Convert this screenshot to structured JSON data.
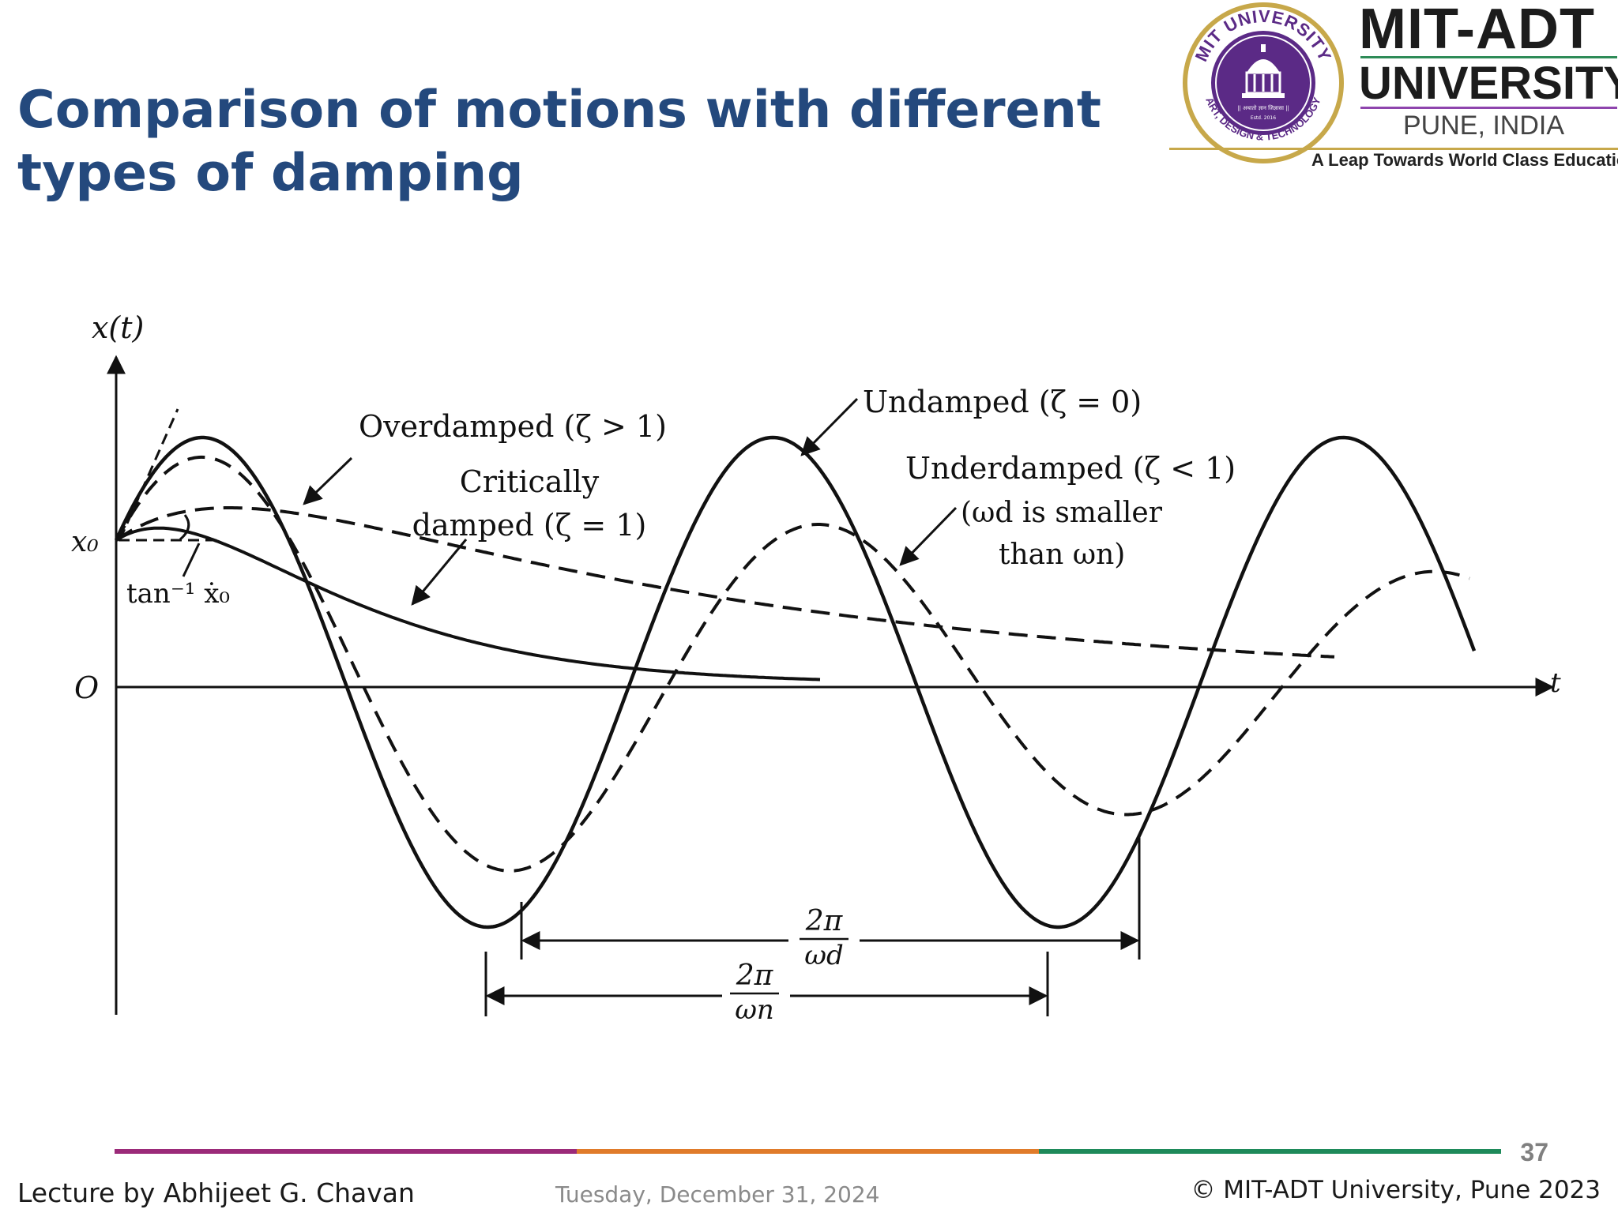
{
  "slide": {
    "title_line1": "Comparison of motions with different",
    "title_line2": "types of damping",
    "page_number": "37"
  },
  "logo": {
    "seal_top_text": "MIT UNIVERSITY",
    "seal_bottom_text": "ART, DESIGN & TECHNOLOGY",
    "seal_motto": "|| अथातो ज्ञान जिज्ञासा ||",
    "seal_estd": "Estd. 2016",
    "name_line1": "MIT-ADT",
    "name_line2": "UNIVERSITY",
    "name_line3": "PUNE, INDIA",
    "tagline": "A Leap Towards World Class Education",
    "colors": {
      "purple": "#5b2a86",
      "gold": "#c7a84a",
      "green": "#2e8b57"
    }
  },
  "diagram": {
    "y_axis_label": "x(t)",
    "x_axis_label": "t",
    "origin_label": "O",
    "x0_label": "x₀",
    "slope_label": "tan⁻¹ ẋ₀",
    "overdamped_label": "Overdamped (ζ > 1)",
    "critically_label_line1": "Critically",
    "critically_label_line2": "damped (ζ = 1)",
    "undamped_label": "Undamped (ζ = 0)",
    "underdamped_label_line1": "Underdamped (ζ < 1)",
    "underdamped_label_line2": "(ωd is smaller",
    "underdamped_label_line3": "than ωn)",
    "period_d_num": "2π",
    "period_d_den": "ωd",
    "period_n_num": "2π",
    "period_n_den": "ωn"
  },
  "footer": {
    "left": "Lecture by Abhijeet G. Chavan",
    "date": "Tuesday, December 31, 2024",
    "right": "© MIT-ADT University, Pune 2023",
    "line_colors": [
      "#9b2a79",
      "#e07b2a",
      "#1e8a5a"
    ]
  }
}
